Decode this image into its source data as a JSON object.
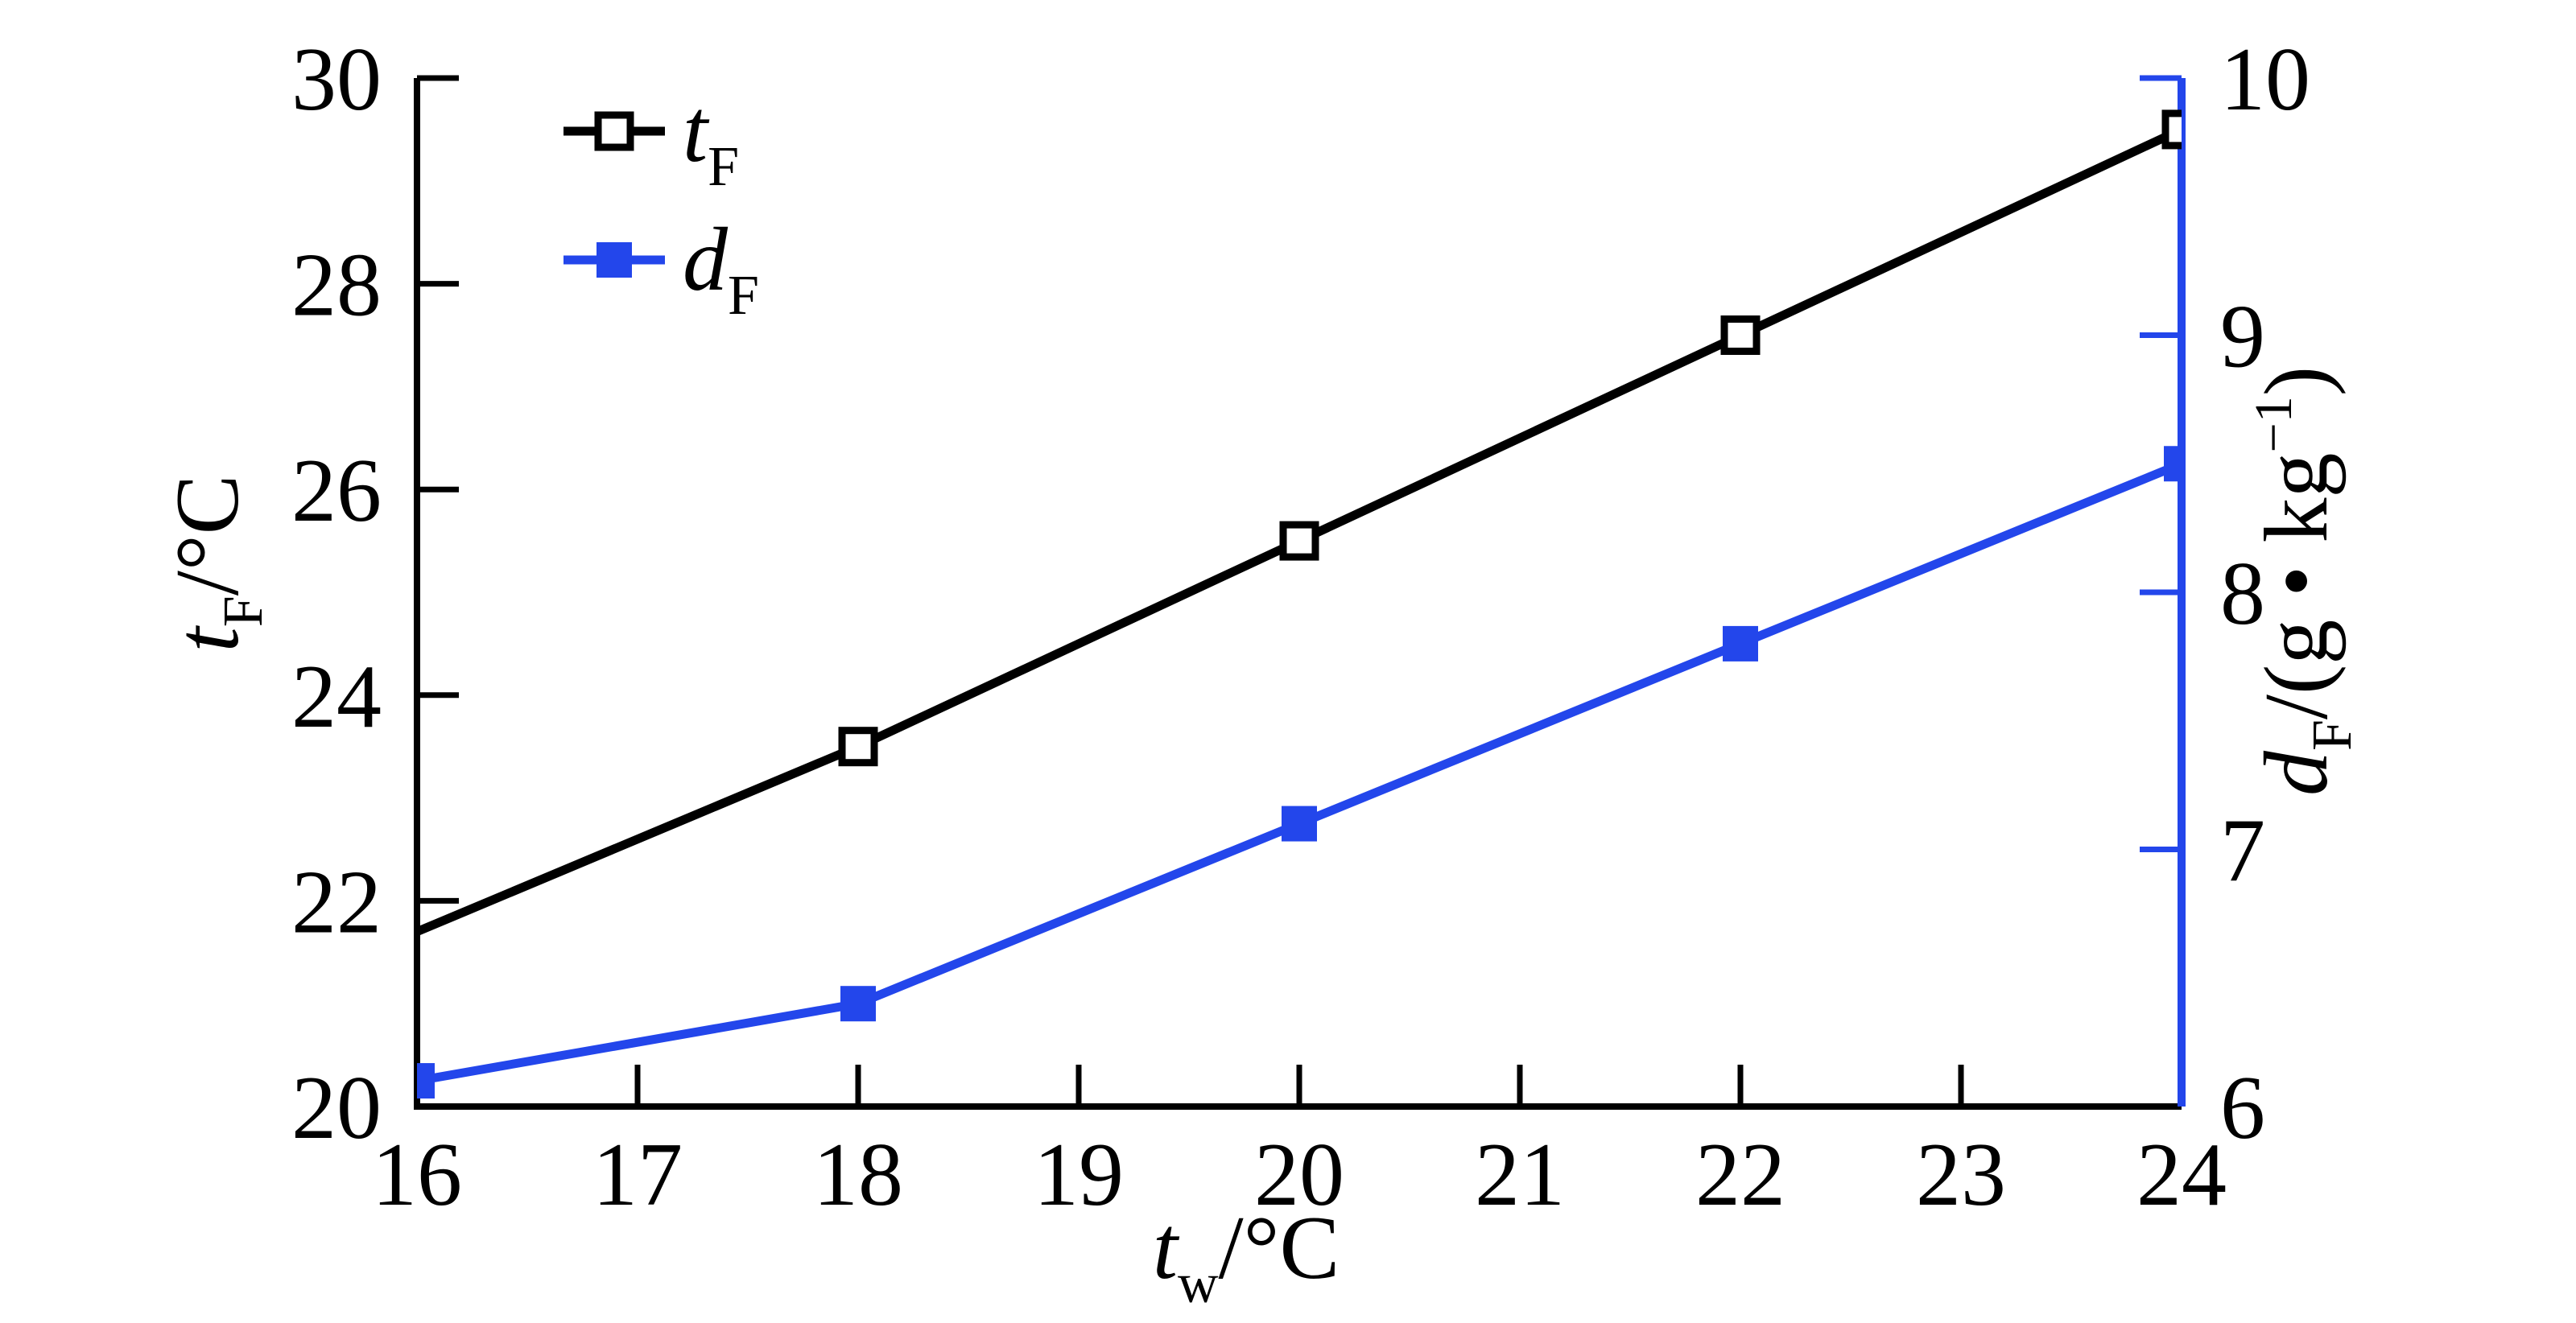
{
  "figure": {
    "background": "#ffffff",
    "black": "#000000",
    "blue": "#2346eb"
  },
  "chart_data": {
    "type": "line",
    "title": "",
    "x": [
      16,
      18,
      20,
      22,
      24
    ],
    "x_tick_labels": [
      "16",
      "17",
      "18",
      "19",
      "20",
      "21",
      "22",
      "23",
      "24"
    ],
    "axes": {
      "x": {
        "min": 16,
        "max": 24,
        "tick_step": 1,
        "label_text": "tw/°C",
        "label_parts": [
          {
            "t": "t",
            "s": "i"
          },
          {
            "t": "w",
            "s": "sub"
          },
          {
            "t": "/°C",
            "s": "n"
          }
        ]
      },
      "left": {
        "min": 20,
        "max": 30,
        "tick_step": 2,
        "ticks": [
          20,
          22,
          24,
          26,
          28,
          30
        ],
        "tick_labels": [
          "20",
          "22",
          "24",
          "26",
          "28",
          "30"
        ],
        "color": "#000000",
        "label_text": "tF/°C",
        "label_parts": [
          {
            "t": "t",
            "s": "i"
          },
          {
            "t": "F",
            "s": "sub"
          },
          {
            "t": "/°C",
            "s": "n"
          }
        ]
      },
      "right": {
        "min": 6,
        "max": 10,
        "tick_step": 1,
        "ticks": [
          6,
          7,
          8,
          9,
          10
        ],
        "tick_labels": [
          "6",
          "7",
          "8",
          "9",
          "10"
        ],
        "color": "#2346eb",
        "label_text": "dF/(g • kg−1)",
        "label_parts": [
          {
            "t": "d",
            "s": "i"
          },
          {
            "t": "F",
            "s": "sub"
          },
          {
            "t": "/(g • kg",
            "s": "n"
          },
          {
            "t": "−1",
            "s": "sup"
          },
          {
            "t": ")",
            "s": "n"
          }
        ]
      }
    },
    "series": [
      {
        "id": "tf",
        "name_text": "tF",
        "legend_parts": [
          {
            "t": "t",
            "s": "i"
          },
          {
            "t": "F",
            "s": "sub"
          }
        ],
        "axis": "left",
        "color": "#000000",
        "marker": "open-square",
        "values": [
          21.7,
          23.5,
          25.5,
          27.5,
          29.5
        ],
        "marker_visible": [
          false,
          true,
          true,
          true,
          true
        ]
      },
      {
        "id": "df",
        "name_text": "dF",
        "legend_parts": [
          {
            "t": "d",
            "s": "i"
          },
          {
            "t": "F",
            "s": "sub"
          }
        ],
        "axis": "right",
        "color": "#2346eb",
        "marker": "filled-square",
        "values": [
          6.1,
          6.4,
          7.1,
          7.8,
          8.5
        ],
        "marker_visible": [
          true,
          true,
          true,
          true,
          true
        ]
      }
    ],
    "legend": {
      "position": "top-left-inside"
    },
    "grid": false
  }
}
